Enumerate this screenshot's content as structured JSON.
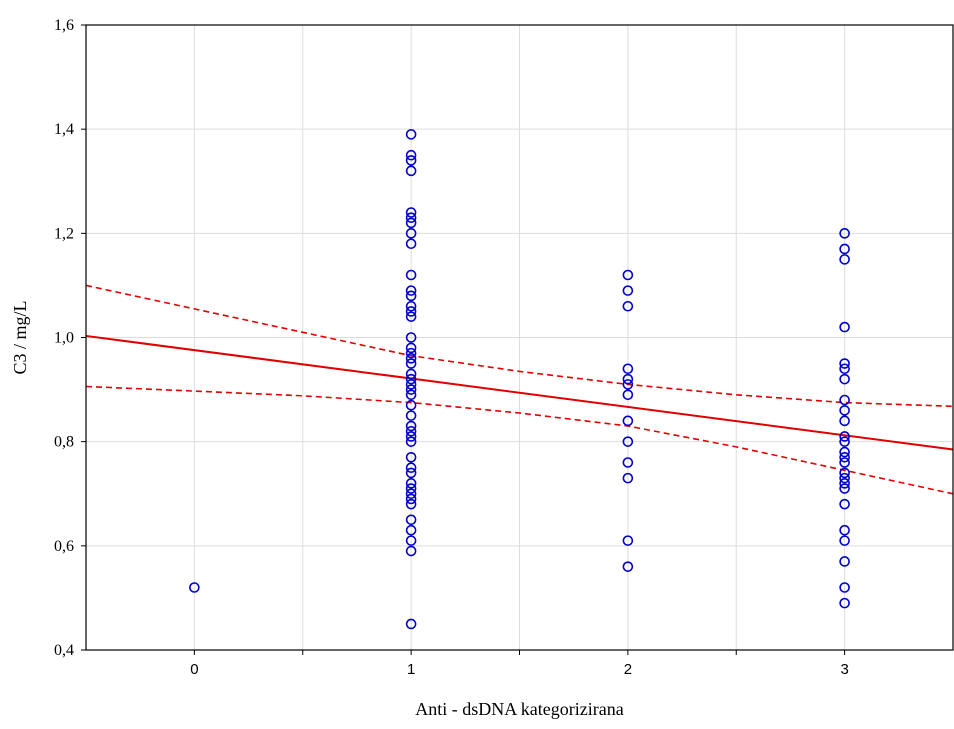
{
  "chart_data": {
    "type": "scatter",
    "title": "",
    "xlabel": "Anti - dsDNA kategorizirana",
    "ylabel": "C3 / mg/L",
    "xlim": [
      -0.5,
      3.5
    ],
    "ylim": [
      0.4,
      1.6
    ],
    "grid": true,
    "x_ticks": [
      {
        "value": 0,
        "label": "0"
      },
      {
        "value": 1,
        "label": "1"
      },
      {
        "value": 2,
        "label": "2"
      },
      {
        "value": 3,
        "label": "3"
      }
    ],
    "y_ticks": [
      {
        "value": 0.4,
        "label": "0,4"
      },
      {
        "value": 0.6,
        "label": "0,6"
      },
      {
        "value": 0.8,
        "label": "0,8"
      },
      {
        "value": 1.0,
        "label": "1,0"
      },
      {
        "value": 1.2,
        "label": "1,2"
      },
      {
        "value": 1.4,
        "label": "1,4"
      },
      {
        "value": 1.6,
        "label": "1,6"
      }
    ],
    "points": [
      {
        "x": 0,
        "ys": [
          0.52
        ]
      },
      {
        "x": 1,
        "ys": [
          1.39,
          1.35,
          1.34,
          1.32,
          1.24,
          1.23,
          1.22,
          1.2,
          1.18,
          1.12,
          1.09,
          1.08,
          1.06,
          1.05,
          1.04,
          1.0,
          0.98,
          0.97,
          0.96,
          0.95,
          0.93,
          0.92,
          0.91,
          0.9,
          0.89,
          0.87,
          0.85,
          0.83,
          0.82,
          0.81,
          0.8,
          0.77,
          0.75,
          0.74,
          0.72,
          0.71,
          0.7,
          0.69,
          0.68,
          0.65,
          0.63,
          0.61,
          0.59,
          0.45
        ]
      },
      {
        "x": 2,
        "ys": [
          1.12,
          1.09,
          1.06,
          0.94,
          0.92,
          0.91,
          0.89,
          0.84,
          0.8,
          0.76,
          0.73,
          0.61,
          0.56
        ]
      },
      {
        "x": 3,
        "ys": [
          1.2,
          1.17,
          1.15,
          1.02,
          0.95,
          0.94,
          0.92,
          0.88,
          0.86,
          0.84,
          0.81,
          0.8,
          0.78,
          0.77,
          0.76,
          0.74,
          0.73,
          0.72,
          0.71,
          0.68,
          0.63,
          0.61,
          0.57,
          0.52,
          0.49
        ]
      }
    ],
    "regression_line": {
      "x": [
        -0.5,
        3.5
      ],
      "y": [
        1.003,
        0.785
      ]
    },
    "confidence_upper": {
      "x": [
        -0.5,
        0.0,
        0.5,
        1.0,
        1.5,
        2.0,
        2.5,
        3.0,
        3.5
      ],
      "y": [
        1.1,
        1.055,
        1.01,
        0.965,
        0.935,
        0.91,
        0.89,
        0.875,
        0.868
      ]
    },
    "confidence_lower": {
      "x": [
        -0.5,
        0.0,
        0.5,
        1.0,
        1.5,
        2.0,
        2.5,
        3.0,
        3.5
      ],
      "y": [
        0.906,
        0.897,
        0.888,
        0.875,
        0.855,
        0.83,
        0.79,
        0.745,
        0.7
      ]
    },
    "colors": {
      "points": "#0000cc",
      "line": "#e00000",
      "grid": "#dddddd",
      "axis": "#000000"
    }
  }
}
